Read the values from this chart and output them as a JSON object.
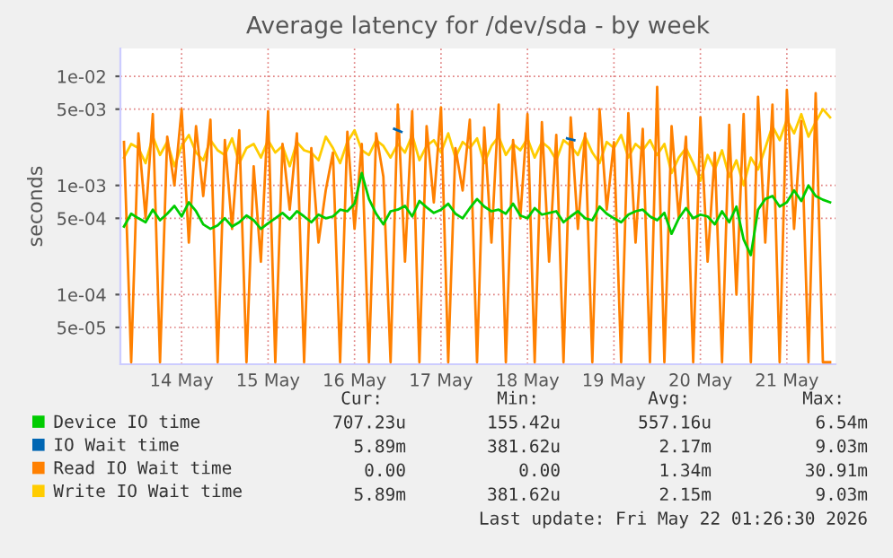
{
  "chart_data": {
    "type": "line",
    "title": "Average latency for /dev/sda - by week",
    "ylabel": "seconds",
    "x": [
      "2026-05-13T20:00",
      "2026-05-13T22:00",
      "2026-05-14T00:00",
      "2026-05-14T02:00",
      "2026-05-14T04:00",
      "2026-05-14T06:00",
      "2026-05-14T08:00",
      "2026-05-14T10:00",
      "2026-05-14T12:00",
      "2026-05-14T14:00",
      "2026-05-14T16:00",
      "2026-05-14T18:00",
      "2026-05-14T20:00",
      "2026-05-14T22:00",
      "2026-05-15T00:00",
      "2026-05-15T02:00",
      "2026-05-15T04:00",
      "2026-05-15T06:00",
      "2026-05-15T08:00",
      "2026-05-15T10:00",
      "2026-05-15T12:00",
      "2026-05-15T14:00",
      "2026-05-15T16:00",
      "2026-05-15T18:00",
      "2026-05-15T20:00",
      "2026-05-15T22:00",
      "2026-05-16T00:00",
      "2026-05-16T02:00",
      "2026-05-16T04:00",
      "2026-05-16T06:00",
      "2026-05-16T08:00",
      "2026-05-16T10:00",
      "2026-05-16T12:00",
      "2026-05-16T14:00",
      "2026-05-16T16:00",
      "2026-05-16T18:00",
      "2026-05-16T20:00",
      "2026-05-16T22:00",
      "2026-05-17T00:00",
      "2026-05-17T02:00",
      "2026-05-17T04:00",
      "2026-05-17T06:00",
      "2026-05-17T08:00",
      "2026-05-17T10:00",
      "2026-05-17T12:00",
      "2026-05-17T14:00",
      "2026-05-17T16:00",
      "2026-05-17T18:00",
      "2026-05-17T20:00",
      "2026-05-17T22:00",
      "2026-05-18T00:00",
      "2026-05-18T02:00",
      "2026-05-18T04:00",
      "2026-05-18T06:00",
      "2026-05-18T08:00",
      "2026-05-18T10:00",
      "2026-05-18T12:00",
      "2026-05-18T14:00",
      "2026-05-18T16:00",
      "2026-05-18T18:00",
      "2026-05-18T20:00",
      "2026-05-18T22:00",
      "2026-05-19T00:00",
      "2026-05-19T02:00",
      "2026-05-19T04:00",
      "2026-05-19T06:00",
      "2026-05-19T08:00",
      "2026-05-19T10:00",
      "2026-05-19T12:00",
      "2026-05-19T14:00",
      "2026-05-19T16:00",
      "2026-05-19T18:00",
      "2026-05-19T20:00",
      "2026-05-19T22:00",
      "2026-05-20T00:00",
      "2026-05-20T02:00",
      "2026-05-20T04:00",
      "2026-05-20T06:00",
      "2026-05-20T08:00",
      "2026-05-20T10:00",
      "2026-05-20T12:00",
      "2026-05-20T14:00",
      "2026-05-20T16:00",
      "2026-05-20T18:00",
      "2026-05-20T20:00",
      "2026-05-20T22:00",
      "2026-05-21T00:00",
      "2026-05-21T02:00",
      "2026-05-21T04:00",
      "2026-05-21T06:00",
      "2026-05-21T08:00",
      "2026-05-21T10:00",
      "2026-05-21T12:00",
      "2026-05-21T14:00",
      "2026-05-21T16:00",
      "2026-05-21T18:00",
      "2026-05-21T20:00",
      "2026-05-21T22:00",
      "2026-05-22T00:00"
    ],
    "series": [
      {
        "name": "Device IO time",
        "color": "#00cc00",
        "values": [
          0.00042,
          0.00055,
          0.0005,
          0.00046,
          0.0006,
          0.00048,
          0.00055,
          0.00065,
          0.00052,
          0.0007,
          0.00058,
          0.00044,
          0.0004,
          0.00043,
          0.0005,
          0.00042,
          0.00046,
          0.00053,
          0.00048,
          0.0004,
          0.00045,
          0.0005,
          0.00056,
          0.00049,
          0.00058,
          0.00052,
          0.00046,
          0.00054,
          0.0005,
          0.00052,
          0.0006,
          0.00058,
          0.00068,
          0.0013,
          0.00075,
          0.00055,
          0.00044,
          0.00058,
          0.0006,
          0.00065,
          0.00052,
          0.00072,
          0.00063,
          0.00056,
          0.0006,
          0.00068,
          0.00055,
          0.0005,
          0.00062,
          0.00075,
          0.00064,
          0.00058,
          0.0006,
          0.00055,
          0.00068,
          0.00053,
          0.0005,
          0.00062,
          0.00054,
          0.00056,
          0.00058,
          0.00046,
          0.00052,
          0.00058,
          0.0005,
          0.00048,
          0.00064,
          0.00055,
          0.0005,
          0.00046,
          0.00054,
          0.00058,
          0.0006,
          0.00052,
          0.00048,
          0.00056,
          0.00036,
          0.0005,
          0.00062,
          0.0005,
          0.00054,
          0.00052,
          0.00044,
          0.00058,
          0.00046,
          0.00064,
          0.00032,
          0.00023,
          0.0006,
          0.00075,
          0.0008,
          0.00064,
          0.0007,
          0.0009,
          0.00072,
          0.001,
          0.0008,
          0.00074,
          0.0007
        ]
      },
      {
        "name": "IO Wait time",
        "color": "#0066b3",
        "x": [
          "2026-05-16T23:00",
          "2026-05-17T01:00",
          "2026-05-18T00:00",
          "2026-05-18T23:00",
          "2026-05-19T01:00"
        ],
        "values": [
          0.0033,
          0.0031,
          null,
          0.0027,
          0.0026
        ]
      },
      {
        "name": "Read IO Wait time",
        "color": "#ff8000",
        "values": [
          0.0025,
          2.4e-05,
          0.003,
          0.0005,
          0.0045,
          2.4e-05,
          0.0028,
          0.001,
          0.005,
          0.0003,
          0.0035,
          0.0008,
          0.004,
          2.4e-05,
          0.0026,
          0.0004,
          0.0032,
          2.4e-05,
          0.0015,
          0.0002,
          0.0048,
          2.4e-05,
          0.0024,
          0.0006,
          0.003,
          2.4e-05,
          0.0022,
          0.0003,
          0.0009,
          0.002,
          2.4e-05,
          0.0031,
          0.0004,
          0.0024,
          2.4e-05,
          0.003,
          0.0012,
          2.4e-05,
          0.0055,
          0.0002,
          0.0048,
          2.4e-05,
          0.0035,
          0.0007,
          0.0052,
          2.4e-05,
          0.0022,
          0.0009,
          0.004,
          2.4e-05,
          0.0034,
          0.0003,
          0.0055,
          2.4e-05,
          0.0026,
          0.0005,
          0.0045,
          2.4e-05,
          0.0038,
          0.0002,
          0.0029,
          2.4e-05,
          0.0042,
          0.0004,
          0.003,
          2.4e-05,
          0.005,
          0.0006,
          0.0025,
          2.4e-05,
          0.0046,
          0.0003,
          0.0033,
          2.4e-05,
          0.008,
          2.4e-05,
          0.0035,
          0.0005,
          0.0028,
          2.4e-05,
          0.0042,
          0.0002,
          0.002,
          2.4e-05,
          0.0036,
          0.0001,
          0.0045,
          2.4e-05,
          0.0065,
          0.0003,
          0.0055,
          2.4e-05,
          0.0075,
          0.0004,
          0.0039,
          2.4e-05,
          0.007,
          2.4e-05,
          2.4e-05
        ]
      },
      {
        "name": "Write IO Wait time",
        "color": "#ffcc00",
        "values": [
          0.0018,
          0.0024,
          0.0022,
          0.0016,
          0.0028,
          0.0019,
          0.0025,
          0.0015,
          0.0023,
          0.0029,
          0.002,
          0.0017,
          0.0026,
          0.0021,
          0.0019,
          0.0027,
          0.0016,
          0.0022,
          0.0024,
          0.0018,
          0.0026,
          0.002,
          0.0023,
          0.0015,
          0.0025,
          0.0021,
          0.002,
          0.0017,
          0.0028,
          0.0022,
          0.0016,
          0.0025,
          0.0032,
          0.0021,
          0.0019,
          0.0026,
          0.0023,
          0.0018,
          0.0024,
          0.002,
          0.0029,
          0.0017,
          0.0023,
          0.0026,
          0.002,
          0.003,
          0.0018,
          0.0025,
          0.0022,
          0.0027,
          0.0016,
          0.0023,
          0.0028,
          0.0019,
          0.0024,
          0.0021,
          0.0027,
          0.0018,
          0.0025,
          0.0022,
          0.0017,
          0.0026,
          0.0023,
          0.0019,
          0.0028,
          0.002,
          0.0016,
          0.0025,
          0.0022,
          0.0029,
          0.0018,
          0.0024,
          0.0021,
          0.0026,
          0.0019,
          0.0024,
          0.0013,
          0.0018,
          0.0022,
          0.0016,
          0.0011,
          0.0019,
          0.0014,
          0.0021,
          0.0012,
          0.0017,
          0.001,
          0.0018,
          0.0014,
          0.0022,
          0.0035,
          0.0026,
          0.004,
          0.003,
          0.0045,
          0.0028,
          0.0038,
          0.005,
          0.0042
        ]
      }
    ],
    "log": "y",
    "xlim": [
      "2026-05-13T19:00",
      "2026-05-22T01:30"
    ],
    "xticks": [
      {
        "value": "2026-05-14T12:00",
        "label": "14 May"
      },
      {
        "value": "2026-05-15T12:00",
        "label": "15 May"
      },
      {
        "value": "2026-05-16T12:00",
        "label": "16 May"
      },
      {
        "value": "2026-05-17T12:00",
        "label": "17 May"
      },
      {
        "value": "2026-05-18T12:00",
        "label": "18 May"
      },
      {
        "value": "2026-05-19T12:00",
        "label": "19 May"
      },
      {
        "value": "2026-05-20T12:00",
        "label": "20 May"
      },
      {
        "value": "2026-05-21T12:00",
        "label": "21 May"
      }
    ],
    "ylim": [
      2.3e-05,
      0.018
    ],
    "yticks": [
      {
        "value": 5e-05,
        "label": "5e-05"
      },
      {
        "value": 0.0001,
        "label": "1e-04"
      },
      {
        "value": 0.0005,
        "label": "5e-04"
      },
      {
        "value": 0.001,
        "label": "1e-03"
      },
      {
        "value": 0.005,
        "label": "5e-03"
      },
      {
        "value": 0.01,
        "label": "1e-02"
      }
    ],
    "grid": true,
    "legend": "bottom",
    "marker": "none",
    "line_style": "solid",
    "annotations": [
      "Cur:",
      "Min:",
      "Avg:",
      "Max:",
      "707.23u",
      "155.42u",
      "557.16u",
      "6.54m",
      "5.89m",
      "381.62u",
      "2.17m",
      "9.03m",
      "0.00",
      "0.00",
      "1.34m",
      "30.91m",
      "5.89m",
      "381.62u",
      "2.15m",
      "9.03m",
      "Last update: Fri May 22 01:26:30 2026"
    ]
  }
}
